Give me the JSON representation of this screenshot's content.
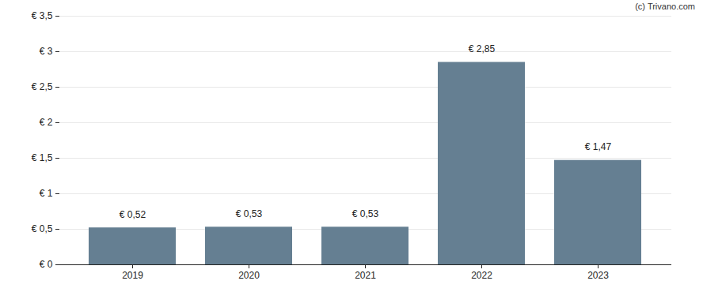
{
  "chart_data": {
    "type": "bar",
    "annotations": [
      "(c) Trivano.com"
    ],
    "categories": [
      "2019",
      "2020",
      "2021",
      "2022",
      "2023"
    ],
    "values": [
      0.52,
      0.53,
      0.53,
      2.85,
      1.47
    ],
    "value_labels": [
      "€ 0,52",
      "€ 0,53",
      "€ 0,53",
      "€ 2,85",
      "€ 1,47"
    ],
    "data_labels": true,
    "color": "#657f92",
    "ylim": [
      0,
      3.5
    ],
    "yticks": [
      {
        "value": 0,
        "label": "€ 0"
      },
      {
        "value": 0.5,
        "label": "€ 0,5"
      },
      {
        "value": 1,
        "label": "€ 1"
      },
      {
        "value": 1.5,
        "label": "€ 1,5"
      },
      {
        "value": 2,
        "label": "€ 2"
      },
      {
        "value": 2.5,
        "label": "€ 2,5"
      },
      {
        "value": 3,
        "label": "€ 3"
      },
      {
        "value": 3.5,
        "label": "€ 3,5"
      }
    ],
    "grid": true
  }
}
